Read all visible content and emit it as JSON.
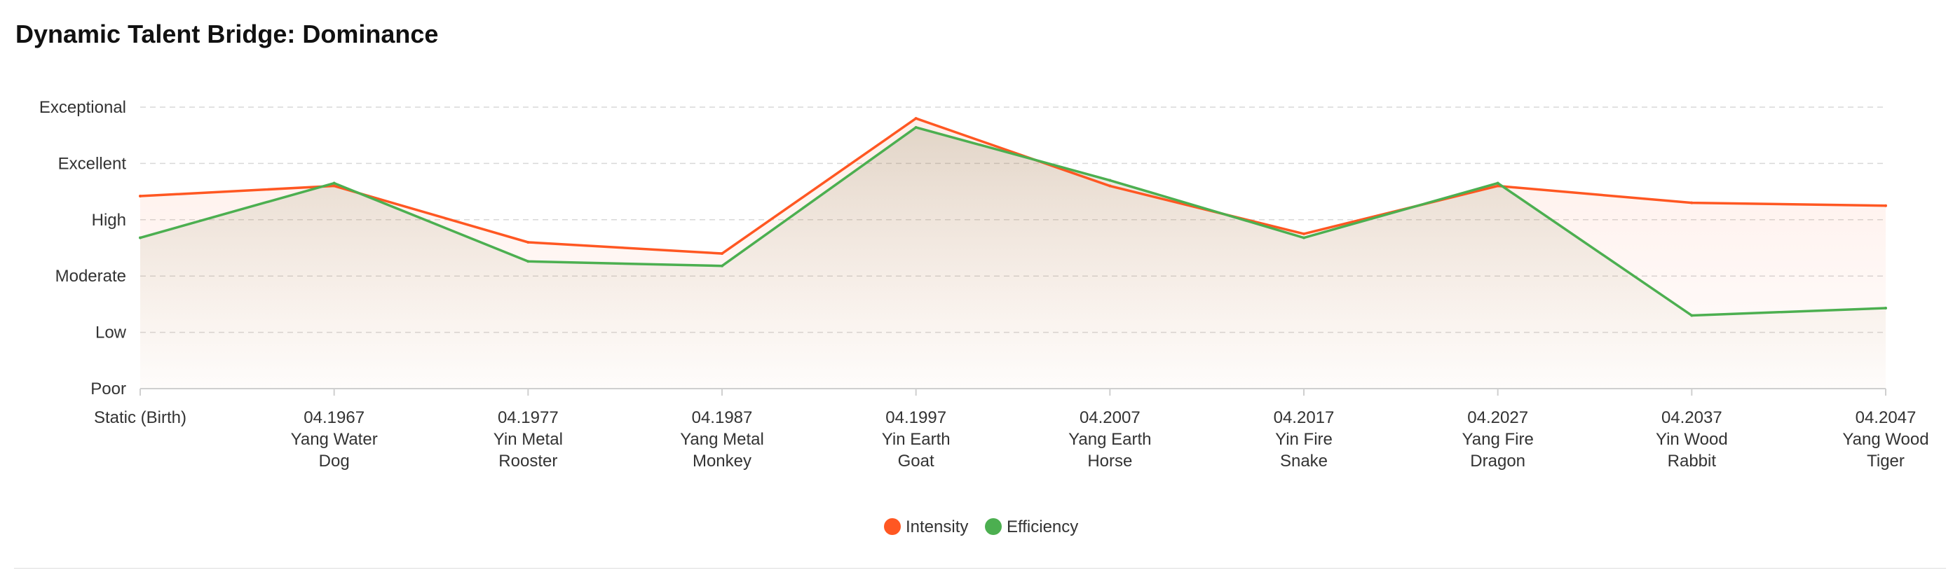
{
  "title": "Dynamic Talent Bridge: Dominance",
  "chart_data": {
    "type": "line",
    "title": "Dynamic Talent Bridge: Dominance",
    "y_categories": [
      "Poor",
      "Low",
      "Moderate",
      "High",
      "Excellent",
      "Exceptional"
    ],
    "ylim": [
      0,
      5
    ],
    "grid": true,
    "legend_position": "bottom-center",
    "area_fill": true,
    "categories": [
      [
        "Static (Birth)"
      ],
      [
        "04.1967",
        "Yang Water",
        "Dog"
      ],
      [
        "04.1977",
        "Yin Metal",
        "Rooster"
      ],
      [
        "04.1987",
        "Yang Metal",
        "Monkey"
      ],
      [
        "04.1997",
        "Yin Earth",
        "Goat"
      ],
      [
        "04.2007",
        "Yang Earth",
        "Horse"
      ],
      [
        "04.2017",
        "Yin Fire",
        "Snake"
      ],
      [
        "04.2027",
        "Yang Fire",
        "Dragon"
      ],
      [
        "04.2037",
        "Yin Wood",
        "Rabbit"
      ],
      [
        "04.2047",
        "Yang Wood",
        "Tiger"
      ]
    ],
    "series": [
      {
        "name": "Intensity",
        "color": "#ff5722",
        "fill": "#ff5722",
        "values": [
          3.42,
          3.6,
          2.6,
          2.4,
          4.8,
          3.6,
          2.75,
          3.6,
          3.3,
          3.25
        ]
      },
      {
        "name": "Efficiency",
        "color": "#4caf50",
        "fill": "#8b8b5a",
        "values": [
          2.68,
          3.65,
          2.26,
          2.18,
          4.64,
          3.7,
          2.68,
          3.65,
          1.3,
          1.43
        ]
      }
    ]
  }
}
